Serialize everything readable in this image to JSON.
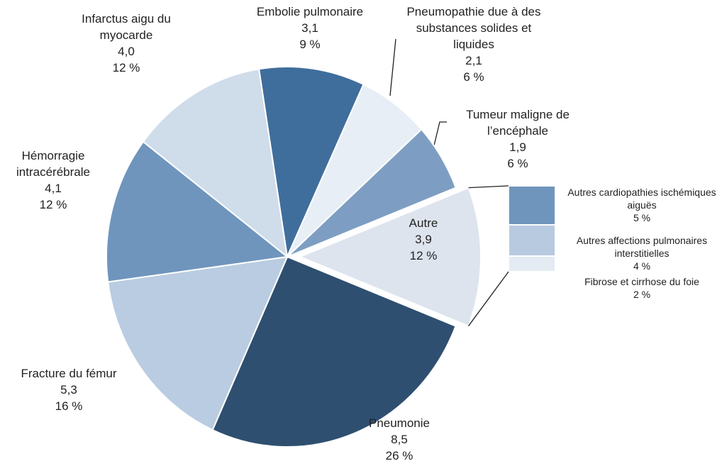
{
  "chart_data": {
    "type": "pie-of-bar",
    "slices": {
      "labels": [
        "Autre",
        "Pneumonie",
        "Fracture du fémur",
        "Hémorragie intracérébrale",
        "Infarctus aigu du myocarde",
        "Embolie pulmonaire",
        "Pneumopathie due à des substances solides et liquides",
        "Tumeur maligne de l’encéphale"
      ],
      "values": [
        3.9,
        8.5,
        5.3,
        4.1,
        4.0,
        3.1,
        2.1,
        1.9
      ],
      "value_labels": [
        "3,9",
        "8,5",
        "5,3",
        "4,1",
        "4,0",
        "3,1",
        "2,1",
        "1,9"
      ],
      "percents": [
        12,
        26,
        16,
        12,
        12,
        9,
        6,
        6
      ],
      "percent_labels": [
        "12 %",
        "26 %",
        "16 %",
        "12 %",
        "12 %",
        "9 %",
        "6 %",
        "6 %"
      ],
      "colors": [
        "#dde4ee",
        "#2f4f70",
        "#b9cce1",
        "#6f95bd",
        "#cfdcea",
        "#3f6e9c",
        "#e8eef6",
        "#7d9ec2"
      ]
    },
    "bar": {
      "labels": [
        "Autres cardiopathies ischémiques aiguës",
        "Autres affections pulmonaires interstitielles",
        "Fibrose et cirrhose du foie"
      ],
      "percents": [
        5,
        4,
        2
      ],
      "percent_labels": [
        "5 %",
        "4 %",
        "2 %"
      ],
      "colors": [
        "#6f95bd",
        "#b7cadf",
        "#e4ebf3"
      ]
    }
  }
}
